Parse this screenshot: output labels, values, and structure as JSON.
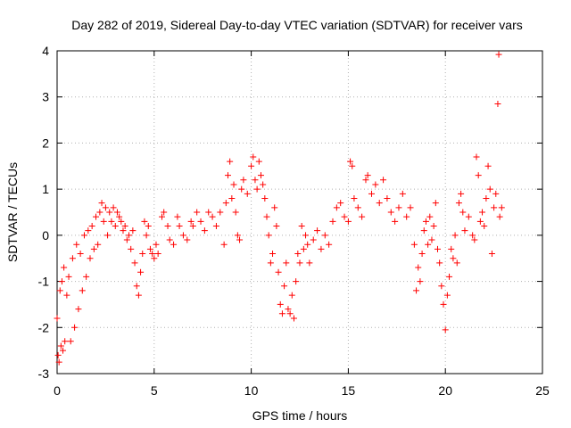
{
  "chart_data": {
    "type": "scatter",
    "title": "Day 282 of 2019, Sidereal Day-to-day VTEC variation (SDTVAR) for receiver vars",
    "xlabel": "GPS time / hours",
    "ylabel": "SDTVAR / TECUs",
    "xlim": [
      0,
      25
    ],
    "ylim": [
      -3,
      4
    ],
    "xticks": [
      0,
      5,
      10,
      15,
      20,
      25
    ],
    "yticks": [
      -3,
      -2,
      -1,
      0,
      1,
      2,
      3,
      4
    ],
    "grid": true,
    "marker": "+",
    "color": "#ff0000",
    "series": [
      {
        "name": "vars",
        "points": [
          [
            0.0,
            -1.8
          ],
          [
            0.05,
            -2.6
          ],
          [
            0.1,
            -2.75
          ],
          [
            0.15,
            -1.2
          ],
          [
            0.2,
            -2.4
          ],
          [
            0.25,
            -1.0
          ],
          [
            0.3,
            -2.5
          ],
          [
            0.35,
            -0.7
          ],
          [
            0.4,
            -2.3
          ],
          [
            0.5,
            -1.3
          ],
          [
            0.6,
            -0.9
          ],
          [
            0.7,
            -2.3
          ],
          [
            0.8,
            -0.5
          ],
          [
            0.9,
            -2.0
          ],
          [
            1.0,
            -0.2
          ],
          [
            1.1,
            -1.6
          ],
          [
            1.2,
            -0.4
          ],
          [
            1.3,
            -1.2
          ],
          [
            1.4,
            0.0
          ],
          [
            1.5,
            -0.9
          ],
          [
            1.6,
            0.1
          ],
          [
            1.7,
            -0.5
          ],
          [
            1.8,
            0.2
          ],
          [
            1.9,
            -0.3
          ],
          [
            2.0,
            0.4
          ],
          [
            2.1,
            -0.2
          ],
          [
            2.2,
            0.5
          ],
          [
            2.3,
            0.7
          ],
          [
            2.4,
            0.3
          ],
          [
            2.5,
            0.6
          ],
          [
            2.6,
            0.0
          ],
          [
            2.7,
            0.5
          ],
          [
            2.8,
            0.3
          ],
          [
            2.9,
            0.6
          ],
          [
            3.0,
            0.2
          ],
          [
            3.1,
            0.5
          ],
          [
            3.2,
            0.4
          ],
          [
            3.3,
            0.3
          ],
          [
            3.4,
            0.1
          ],
          [
            3.5,
            0.2
          ],
          [
            3.6,
            -0.1
          ],
          [
            3.7,
            0.0
          ],
          [
            3.8,
            -0.3
          ],
          [
            3.9,
            0.1
          ],
          [
            4.0,
            -0.6
          ],
          [
            4.1,
            -1.1
          ],
          [
            4.2,
            -1.3
          ],
          [
            4.3,
            -0.8
          ],
          [
            4.4,
            -0.4
          ],
          [
            4.5,
            0.3
          ],
          [
            4.6,
            0.0
          ],
          [
            4.7,
            0.2
          ],
          [
            4.8,
            -0.3
          ],
          [
            4.9,
            -0.4
          ],
          [
            5.0,
            -0.5
          ],
          [
            5.1,
            -0.2
          ],
          [
            5.2,
            -0.4
          ],
          [
            5.4,
            0.4
          ],
          [
            5.5,
            0.5
          ],
          [
            5.7,
            0.2
          ],
          [
            5.8,
            -0.1
          ],
          [
            6.0,
            -0.2
          ],
          [
            6.2,
            0.4
          ],
          [
            6.3,
            0.2
          ],
          [
            6.5,
            0.0
          ],
          [
            6.7,
            -0.1
          ],
          [
            6.9,
            0.3
          ],
          [
            7.0,
            0.2
          ],
          [
            7.2,
            0.5
          ],
          [
            7.4,
            0.3
          ],
          [
            7.6,
            0.1
          ],
          [
            7.8,
            0.5
          ],
          [
            8.0,
            0.4
          ],
          [
            8.2,
            0.2
          ],
          [
            8.4,
            0.5
          ],
          [
            8.6,
            -0.2
          ],
          [
            8.7,
            0.7
          ],
          [
            8.8,
            1.3
          ],
          [
            8.9,
            1.6
          ],
          [
            9.0,
            0.8
          ],
          [
            9.1,
            1.1
          ],
          [
            9.2,
            0.5
          ],
          [
            9.3,
            0.0
          ],
          [
            9.4,
            -0.1
          ],
          [
            9.5,
            1.0
          ],
          [
            9.6,
            1.2
          ],
          [
            9.8,
            0.9
          ],
          [
            10.0,
            1.5
          ],
          [
            10.1,
            1.7
          ],
          [
            10.2,
            1.2
          ],
          [
            10.3,
            1.0
          ],
          [
            10.4,
            1.6
          ],
          [
            10.5,
            1.3
          ],
          [
            10.6,
            1.1
          ],
          [
            10.7,
            0.8
          ],
          [
            10.8,
            0.4
          ],
          [
            10.9,
            0.0
          ],
          [
            11.0,
            -0.6
          ],
          [
            11.1,
            -0.4
          ],
          [
            11.2,
            0.6
          ],
          [
            11.3,
            0.2
          ],
          [
            11.4,
            -0.8
          ],
          [
            11.5,
            -1.5
          ],
          [
            11.6,
            -1.7
          ],
          [
            11.7,
            -1.1
          ],
          [
            11.8,
            -0.6
          ],
          [
            11.9,
            -1.6
          ],
          [
            12.0,
            -1.7
          ],
          [
            12.1,
            -1.3
          ],
          [
            12.2,
            -1.8
          ],
          [
            12.3,
            -1.0
          ],
          [
            12.4,
            -0.4
          ],
          [
            12.5,
            -0.6
          ],
          [
            12.6,
            0.2
          ],
          [
            12.7,
            -0.3
          ],
          [
            12.8,
            0.0
          ],
          [
            12.9,
            -0.2
          ],
          [
            13.0,
            -0.6
          ],
          [
            13.2,
            -0.1
          ],
          [
            13.4,
            0.1
          ],
          [
            13.6,
            -0.3
          ],
          [
            13.8,
            0.0
          ],
          [
            14.0,
            -0.2
          ],
          [
            14.2,
            0.3
          ],
          [
            14.4,
            0.6
          ],
          [
            14.6,
            0.7
          ],
          [
            14.8,
            0.4
          ],
          [
            15.0,
            0.3
          ],
          [
            15.1,
            1.6
          ],
          [
            15.2,
            1.5
          ],
          [
            15.3,
            0.8
          ],
          [
            15.5,
            0.6
          ],
          [
            15.7,
            0.4
          ],
          [
            15.9,
            1.2
          ],
          [
            16.0,
            1.3
          ],
          [
            16.2,
            0.9
          ],
          [
            16.4,
            1.1
          ],
          [
            16.6,
            0.7
          ],
          [
            16.8,
            1.2
          ],
          [
            17.0,
            0.8
          ],
          [
            17.2,
            0.5
          ],
          [
            17.4,
            0.3
          ],
          [
            17.6,
            0.6
          ],
          [
            17.8,
            0.9
          ],
          [
            18.0,
            0.4
          ],
          [
            18.2,
            0.6
          ],
          [
            18.4,
            -0.2
          ],
          [
            18.5,
            -1.2
          ],
          [
            18.6,
            -0.7
          ],
          [
            18.7,
            -1.0
          ],
          [
            18.8,
            -0.4
          ],
          [
            18.9,
            0.1
          ],
          [
            19.0,
            0.3
          ],
          [
            19.1,
            -0.2
          ],
          [
            19.2,
            0.4
          ],
          [
            19.3,
            -0.1
          ],
          [
            19.4,
            0.2
          ],
          [
            19.5,
            0.7
          ],
          [
            19.6,
            -0.3
          ],
          [
            19.7,
            -0.6
          ],
          [
            19.8,
            -1.1
          ],
          [
            19.9,
            -1.5
          ],
          [
            20.0,
            -2.05
          ],
          [
            20.1,
            -1.3
          ],
          [
            20.2,
            -0.9
          ],
          [
            20.3,
            -0.3
          ],
          [
            20.4,
            -0.5
          ],
          [
            20.5,
            0.0
          ],
          [
            20.6,
            -0.6
          ],
          [
            20.7,
            0.7
          ],
          [
            20.8,
            0.9
          ],
          [
            20.9,
            0.5
          ],
          [
            21.0,
            0.1
          ],
          [
            21.2,
            0.4
          ],
          [
            21.4,
            0.0
          ],
          [
            21.5,
            -0.1
          ],
          [
            21.6,
            1.7
          ],
          [
            21.7,
            1.3
          ],
          [
            21.8,
            0.3
          ],
          [
            21.9,
            0.5
          ],
          [
            22.0,
            0.2
          ],
          [
            22.1,
            0.8
          ],
          [
            22.2,
            1.5
          ],
          [
            22.3,
            1.0
          ],
          [
            22.4,
            -0.4
          ],
          [
            22.5,
            0.6
          ],
          [
            22.6,
            0.9
          ],
          [
            22.7,
            2.85
          ],
          [
            22.75,
            3.92
          ],
          [
            22.8,
            0.4
          ],
          [
            22.9,
            0.6
          ]
        ]
      }
    ]
  }
}
